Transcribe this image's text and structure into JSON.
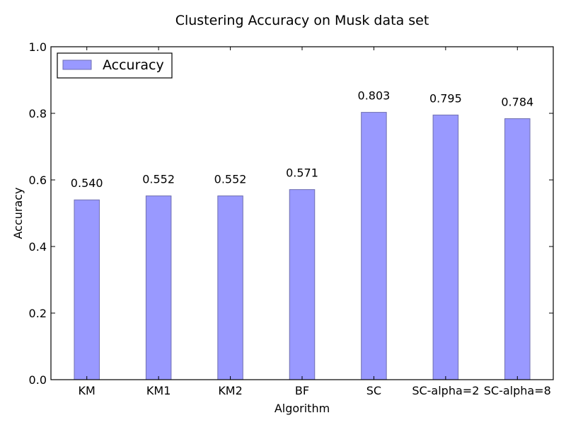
{
  "chart_data": {
    "type": "bar",
    "title": "Clustering Accuracy on Musk data set",
    "xlabel": "Algorithm",
    "ylabel": "Accuracy",
    "categories": [
      "KM",
      "KM1",
      "KM2",
      "BF",
      "SC",
      "SC-alpha=2",
      "SC-alpha=8"
    ],
    "series": [
      {
        "name": "Accuracy",
        "values": [
          0.54,
          0.552,
          0.552,
          0.571,
          0.803,
          0.795,
          0.784
        ],
        "value_labels": [
          "0.540",
          "0.552",
          "0.552",
          "0.571",
          "0.803",
          "0.795",
          "0.784"
        ]
      }
    ],
    "ylim": [
      0.0,
      1.0
    ],
    "yticks": [
      "0.0",
      "0.2",
      "0.4",
      "0.6",
      "0.8",
      "1.0"
    ],
    "legend_position": "top-left",
    "grid": false,
    "colors": {
      "bar_fill": "#9999ff",
      "bar_edge": "#6f6fb0",
      "axis": "#000000"
    }
  }
}
